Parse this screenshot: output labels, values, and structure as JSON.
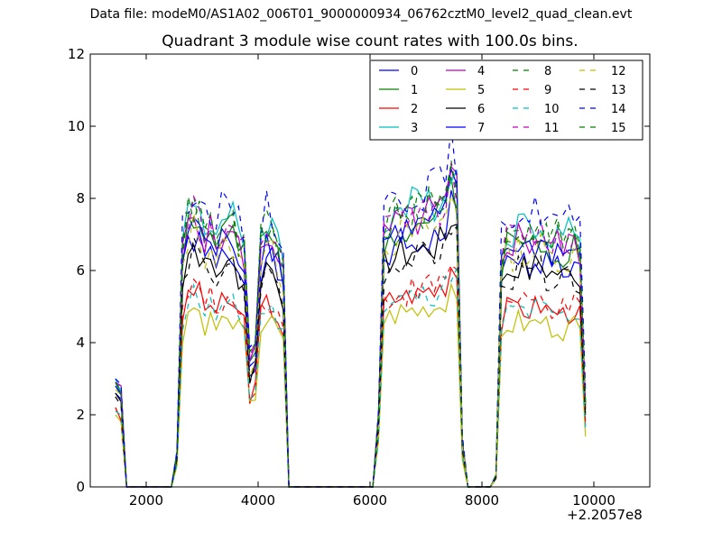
{
  "figure": {
    "suptitle": "Data file: modeM0/AS1A02_006T01_9000000934_06762cztM0_level2_quad_clean.evt"
  },
  "chart_data": {
    "type": "line",
    "title": "Quadrant 3 module wise count rates with 100.0s bins.",
    "xlabel": "",
    "ylabel": "",
    "x_offset_label": "+2.2057e8",
    "xlim": [
      1000,
      11000
    ],
    "ylim": [
      0,
      12
    ],
    "xticks": [
      2000,
      4000,
      6000,
      8000,
      10000
    ],
    "xtick_labels": [
      "2000",
      "4000",
      "6000",
      "8000",
      "10000"
    ],
    "yticks": [
      0,
      2,
      4,
      6,
      8,
      10,
      12
    ],
    "ytick_labels": [
      "0",
      "2",
      "4",
      "6",
      "8",
      "10",
      "12"
    ],
    "legend_position": "top-right",
    "x_start": 1450,
    "x_step": 100,
    "profile": [
      1.2,
      0.35,
      0,
      0,
      0,
      0,
      0,
      0,
      0,
      0,
      0,
      0.12,
      0.85,
      0.97,
      1.0,
      0.97,
      0.9,
      0.93,
      0.88,
      0.92,
      0.9,
      0.93,
      0.87,
      0.84,
      0.45,
      0.5,
      0.88,
      0.92,
      0.9,
      0.86,
      0.78,
      0,
      0,
      0,
      0,
      0,
      0,
      0,
      0,
      0,
      0,
      0,
      0,
      0,
      0,
      0,
      0,
      0.25,
      0.92,
      0.94,
      0.95,
      0.97,
      0.96,
      0.98,
      0.97,
      0.98,
      1.0,
      0.99,
      1.01,
      1.03,
      1.12,
      1.08,
      0.16,
      0,
      0,
      0,
      0,
      0,
      0.04,
      0.82,
      0.9,
      0.89,
      0.92,
      0.9,
      0.89,
      0.91,
      0.92,
      0.9,
      0.88,
      0.89,
      0.87,
      0.88,
      0.9,
      0.86,
      0.3
    ],
    "series": [
      {
        "name": "0",
        "color": "#0000ff",
        "dash": "solid",
        "level": 6.9,
        "start": 2.6
      },
      {
        "name": "1",
        "color": "#008000",
        "dash": "solid",
        "level": 7.5,
        "start": 2.9
      },
      {
        "name": "2",
        "color": "#ff0000",
        "dash": "solid",
        "level": 5.5,
        "start": 2.2
      },
      {
        "name": "3",
        "color": "#00bfbf",
        "dash": "solid",
        "level": 8.0,
        "start": 3.0
      },
      {
        "name": "4",
        "color": "#bf00bf",
        "dash": "solid",
        "level": 7.6,
        "start": 2.9
      },
      {
        "name": "5",
        "color": "#bfbf00",
        "dash": "solid",
        "level": 5.0,
        "start": 2.0
      },
      {
        "name": "6",
        "color": "#000000",
        "dash": "solid",
        "level": 6.7,
        "start": 2.6
      },
      {
        "name": "7",
        "color": "#0000ff",
        "dash": "solid",
        "level": 7.4,
        "start": 2.8
      },
      {
        "name": "8",
        "color": "#008000",
        "dash": "dashed",
        "level": 7.9,
        "start": 2.9
      },
      {
        "name": "9",
        "color": "#ff0000",
        "dash": "dashed",
        "level": 5.6,
        "start": 2.2
      },
      {
        "name": "10",
        "color": "#00bfbf",
        "dash": "dashed",
        "level": 5.4,
        "start": 2.1
      },
      {
        "name": "11",
        "color": "#bf00bf",
        "dash": "dashed",
        "level": 7.7,
        "start": 2.9
      },
      {
        "name": "12",
        "color": "#bfbf00",
        "dash": "dashed",
        "level": 7.2,
        "start": 2.7
      },
      {
        "name": "13",
        "color": "#000000",
        "dash": "dashed",
        "level": 6.5,
        "start": 2.5
      },
      {
        "name": "14",
        "color": "#0000ff",
        "dash": "dashed",
        "level": 8.4,
        "start": 3.0
      },
      {
        "name": "15",
        "color": "#008000",
        "dash": "dashed",
        "level": 7.8,
        "start": 2.9
      }
    ]
  }
}
